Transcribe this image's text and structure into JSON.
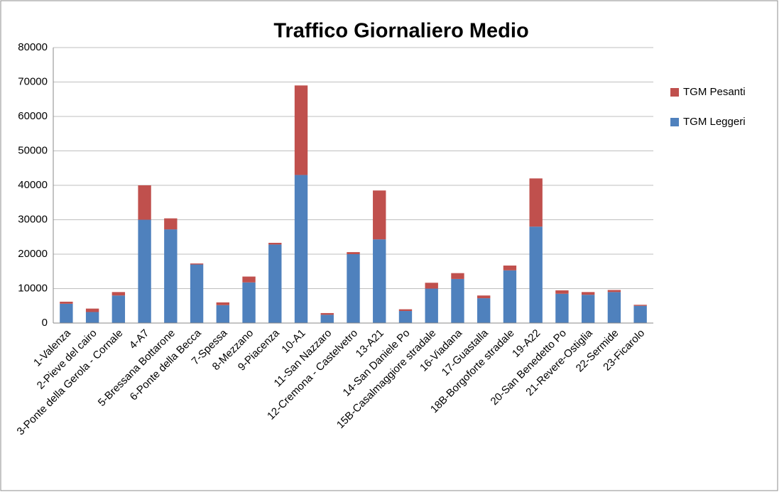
{
  "chart_data": {
    "type": "bar",
    "stacked": true,
    "title": "Traffico Giornaliero Medio",
    "categories": [
      "1-Valenza",
      "2-Pieve del cairo",
      "3-Ponte della Gerola - Cornale",
      "4-A7",
      "5-Bressana Bottarone",
      "6-Ponte della Becca",
      "7-Spessa",
      "8-Mezzano",
      "9-Piacenza",
      "10-A1",
      "11-San Nazzaro",
      "12-Cremona - Castelvetro",
      "13-A21",
      "14-San Daniele Po",
      "15B-Casalmaggiore stradale",
      "16-Viadana",
      "17-Guastalla",
      "18B-Borgoforte stradale",
      "19-A22",
      "20-San Benedetto Po",
      "21-Revere-Ostiglia",
      "22-Sermide",
      "23-Ficarolo"
    ],
    "series": [
      {
        "name": "TGM Leggeri",
        "color": "#4f81bd",
        "values": [
          5600,
          3200,
          8000,
          30000,
          27200,
          17000,
          5200,
          11800,
          22800,
          43000,
          2400,
          20000,
          24300,
          3500,
          10000,
          12800,
          7200,
          15300,
          28000,
          8500,
          8200,
          9000,
          5000
        ]
      },
      {
        "name": "TGM Pesanti",
        "color": "#c0504d",
        "values": [
          600,
          1000,
          1000,
          10000,
          3200,
          300,
          800,
          1700,
          500,
          26000,
          500,
          600,
          14200,
          500,
          1700,
          1700,
          800,
          1400,
          14000,
          1000,
          800,
          600,
          300
        ]
      }
    ],
    "ylim": [
      0,
      80000
    ],
    "yticks": [
      0,
      10000,
      20000,
      30000,
      40000,
      50000,
      60000,
      70000,
      80000
    ],
    "grid": true,
    "legend": "right"
  }
}
